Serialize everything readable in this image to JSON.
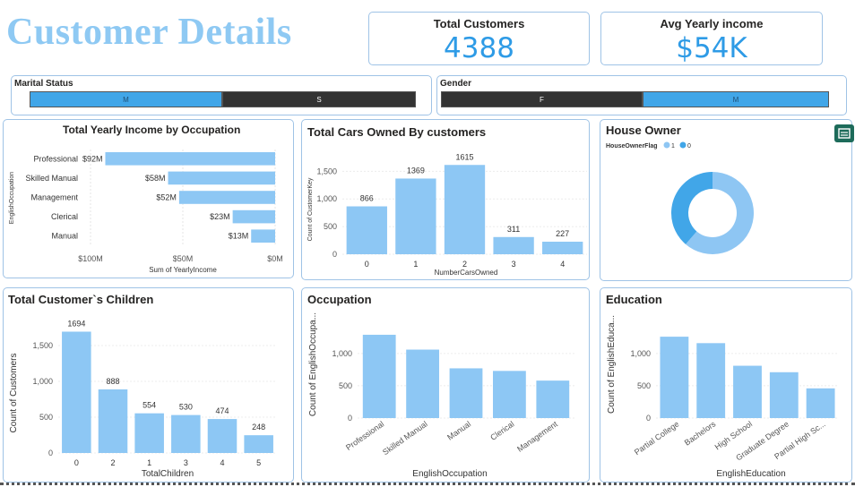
{
  "page": {
    "title": "Customer Details"
  },
  "kpis": {
    "total_customers": {
      "label": "Total Customers",
      "value": "4388"
    },
    "avg_income": {
      "label": "Avg Yearly income",
      "value": "$54K"
    }
  },
  "slicers": {
    "marital": {
      "title": "Marital Status",
      "options": [
        "M",
        "S"
      ]
    },
    "gender": {
      "title": "Gender",
      "options": [
        "F",
        "M"
      ]
    }
  },
  "colors": {
    "bar": "#8dc7f4",
    "donut_dark": "#41a6e8",
    "donut_light": "#8ec6f3",
    "accent": "#2e9be6"
  },
  "chart_data": [
    {
      "id": "income",
      "type": "bar",
      "orientation": "horizontal",
      "title": "Total Yearly Income by Occupation",
      "categories": [
        "Professional",
        "Skilled Manual",
        "Management",
        "Clerical",
        "Manual"
      ],
      "values": [
        92,
        58,
        52,
        23,
        13
      ],
      "value_labels": [
        "$92M",
        "$58M",
        "$52M",
        "$23M",
        "$13M"
      ],
      "ticks": [
        "$100M",
        "$50M",
        "$0M"
      ],
      "xlabel": "Sum of YearlyIncome",
      "ylabel": "EnglishOccupation",
      "xlim": [
        0,
        100
      ],
      "axis_reversed": true
    },
    {
      "id": "cars",
      "type": "bar",
      "title": "Total Cars Owned By customers",
      "categories": [
        "0",
        "1",
        "2",
        "3",
        "4"
      ],
      "values": [
        866,
        1369,
        1615,
        311,
        227
      ],
      "value_labels": [
        "866",
        "1369",
        "1615",
        "311",
        "227"
      ],
      "ticks": [
        "0",
        "500",
        "1,000",
        "1,500"
      ],
      "xlabel": "NumberCarsOwned",
      "ylabel": "Count of CustomerKey",
      "ylim": [
        0,
        1700
      ]
    },
    {
      "id": "house",
      "type": "pie",
      "title": "House Owner",
      "legend_title": "HouseOwnerFlag",
      "categories": [
        "1",
        "0"
      ],
      "values": [
        2690,
        1698
      ]
    },
    {
      "id": "children",
      "type": "bar",
      "title": "Total Customer`s Children",
      "categories": [
        "0",
        "2",
        "1",
        "3",
        "4",
        "5"
      ],
      "values": [
        1694,
        888,
        554,
        530,
        474,
        248
      ],
      "value_labels": [
        "1694",
        "888",
        "554",
        "530",
        "474",
        "248"
      ],
      "ticks": [
        "0",
        "500",
        "1,000",
        "1,500"
      ],
      "xlabel": "TotalChildren",
      "ylabel": "Count of Customers",
      "ylim": [
        0,
        1750
      ]
    },
    {
      "id": "occupation",
      "type": "bar",
      "title": "Occupation",
      "categories": [
        "Professional",
        "Skilled Manual",
        "Manual",
        "Clerical",
        "Management"
      ],
      "values": [
        1290,
        1060,
        770,
        730,
        580
      ],
      "ticks": [
        "0",
        "500",
        "1,000"
      ],
      "xlabel": "EnglishOccupation",
      "ylabel": "Count of EnglishOccupa...",
      "ylim": [
        0,
        1400
      ]
    },
    {
      "id": "education",
      "type": "bar",
      "title": "Education",
      "categories": [
        "Partial College",
        "Bachelors",
        "High School",
        "Graduate Degree",
        "Partial High Sc..."
      ],
      "values": [
        1260,
        1160,
        810,
        710,
        460
      ],
      "ticks": [
        "0",
        "500",
        "1,000"
      ],
      "xlabel": "EnglishEducation",
      "ylabel": "Count of EnglishEduca...",
      "ylim": [
        0,
        1400
      ]
    }
  ]
}
